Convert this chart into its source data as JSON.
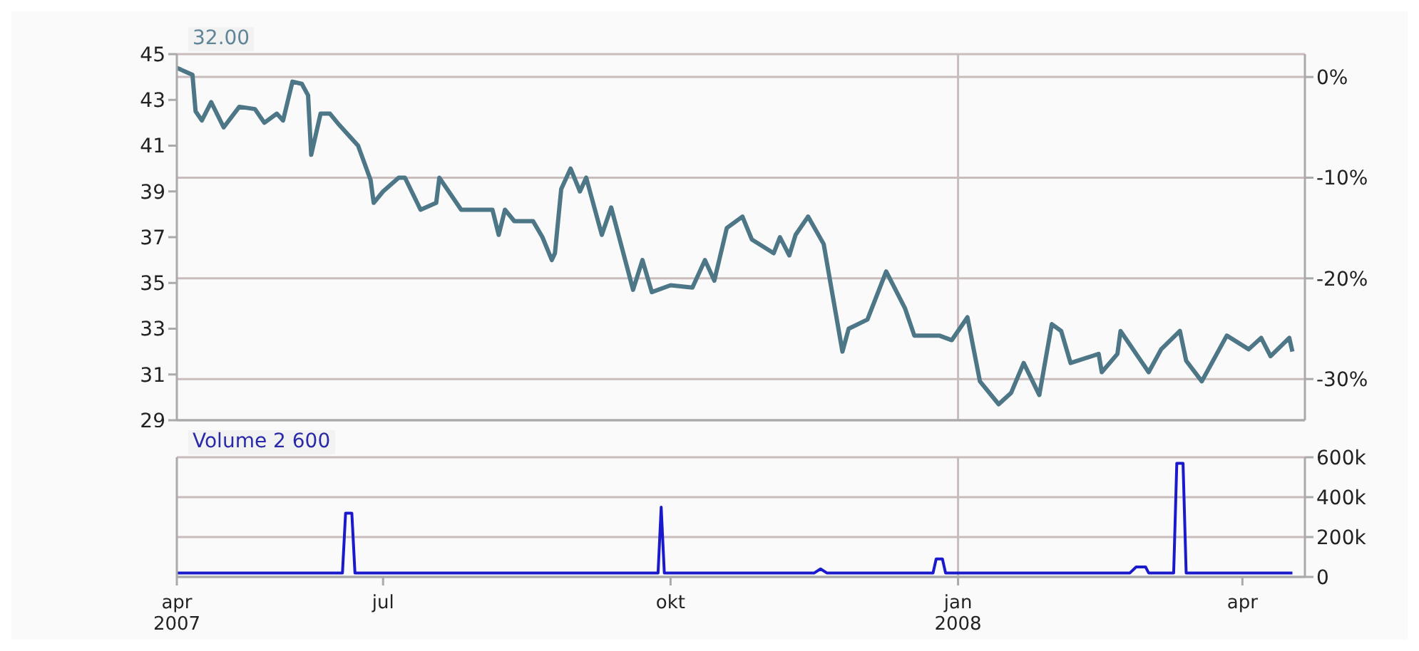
{
  "chart_data": [
    {
      "type": "line",
      "title": "32.00",
      "x": [
        "2007-04-26",
        "2007-05-01",
        "2007-05-02",
        "2007-05-04",
        "2007-05-07",
        "2007-05-11",
        "2007-05-16",
        "2007-05-21",
        "2007-05-24",
        "2007-05-28",
        "2007-05-30",
        "2007-06-02",
        "2007-06-05",
        "2007-06-07",
        "2007-06-08",
        "2007-06-11",
        "2007-06-14",
        "2007-06-17",
        "2007-06-21",
        "2007-06-23",
        "2007-06-27",
        "2007-06-28",
        "2007-07-01",
        "2007-07-06",
        "2007-07-08",
        "2007-07-13",
        "2007-07-18",
        "2007-07-19",
        "2007-07-26",
        "2007-08-05",
        "2007-08-07",
        "2007-08-09",
        "2007-08-12",
        "2007-08-18",
        "2007-08-21",
        "2007-08-24",
        "2007-08-25",
        "2007-08-27",
        "2007-08-30",
        "2007-09-02",
        "2007-09-04",
        "2007-09-09",
        "2007-09-12",
        "2007-09-19",
        "2007-09-22",
        "2007-09-25",
        "2007-10-01",
        "2007-10-08",
        "2007-10-12",
        "2007-10-15",
        "2007-10-19",
        "2007-10-24",
        "2007-10-27",
        "2007-11-03",
        "2007-11-05",
        "2007-11-08",
        "2007-11-10",
        "2007-11-14",
        "2007-11-19",
        "2007-11-25",
        "2007-11-27",
        "2007-12-03",
        "2007-12-09",
        "2007-12-15",
        "2007-12-18",
        "2007-12-26",
        "2007-12-30",
        "2008-01-04",
        "2008-01-08",
        "2008-01-14",
        "2008-01-18",
        "2008-01-22",
        "2008-01-27",
        "2008-01-31",
        "2008-02-03",
        "2008-02-06",
        "2008-02-15",
        "2008-02-16",
        "2008-02-21",
        "2008-02-22",
        "2008-03-02",
        "2008-03-06",
        "2008-03-12",
        "2008-03-14",
        "2008-03-19",
        "2008-03-27",
        "2008-04-03",
        "2008-04-07",
        "2008-04-10",
        "2008-04-16",
        "2008-04-17"
      ],
      "series": [
        {
          "color": "#4d7687",
          "values": [
            44.4,
            44.1,
            42.5,
            42.1,
            42.9,
            41.8,
            42.7,
            42.6,
            42.0,
            42.4,
            42.1,
            43.8,
            43.7,
            43.2,
            40.6,
            42.4,
            42.4,
            41.9,
            41.3,
            41.0,
            39.5,
            38.5,
            39.0,
            39.6,
            39.6,
            38.2,
            38.5,
            39.6,
            38.2,
            38.2,
            37.1,
            38.2,
            37.7,
            37.7,
            37.0,
            36.0,
            36.3,
            39.1,
            40.0,
            39.0,
            39.6,
            37.1,
            38.3,
            34.7,
            36.0,
            34.6,
            34.9,
            34.8,
            36.0,
            35.1,
            37.4,
            37.9,
            36.9,
            36.3,
            37.0,
            36.2,
            37.1,
            37.9,
            36.7,
            32.0,
            33.0,
            33.4,
            35.5,
            33.9,
            32.7,
            32.7,
            32.5,
            33.5,
            30.7,
            29.7,
            30.2,
            31.5,
            30.1,
            33.2,
            32.9,
            31.5,
            31.9,
            31.1,
            31.9,
            32.9,
            31.1,
            32.1,
            32.9,
            31.6,
            30.7,
            32.7,
            32.1,
            32.6,
            31.8,
            32.6,
            32.0
          ]
        }
      ],
      "xlim": [
        "2007-04-26",
        "2008-04-21"
      ],
      "ylim": [
        29,
        45
      ],
      "yticks": [
        29,
        31,
        33,
        35,
        37,
        39,
        41,
        43,
        45
      ],
      "y2lim": [
        -34.09,
        2.27
      ],
      "y2ticks": [
        {
          "value": 0,
          "label": "0%"
        },
        {
          "value": -10,
          "label": "-10%"
        },
        {
          "value": -20,
          "label": "-20%"
        },
        {
          "value": -30,
          "label": "-30%"
        }
      ],
      "ref_lines": [
        {
          "axis": "x",
          "value": "2008-01-01"
        }
      ],
      "grid": "y",
      "tick_labels": "y",
      "marker": "none"
    },
    {
      "type": "line",
      "title": "Volume 2 600",
      "x": [
        "2007-04-26",
        "2007-06-18",
        "2007-06-19",
        "2007-06-21",
        "2007-06-22",
        "2007-09-27",
        "2007-09-28",
        "2007-09-29",
        "2007-11-16",
        "2007-11-18",
        "2007-11-20",
        "2007-12-24",
        "2007-12-25",
        "2007-12-27",
        "2007-12-28",
        "2008-02-25",
        "2008-02-27",
        "2008-03-01",
        "2008-03-02",
        "2008-03-10",
        "2008-03-11",
        "2008-03-13",
        "2008-03-14",
        "2008-04-17"
      ],
      "series": [
        {
          "color": "#1a1acc",
          "values": [
            20000,
            20000,
            320000,
            320000,
            20000,
            20000,
            350000,
            20000,
            20000,
            40000,
            20000,
            20000,
            90000,
            90000,
            20000,
            20000,
            50000,
            50000,
            20000,
            20000,
            570000,
            570000,
            20000,
            20000
          ]
        }
      ],
      "xlim": [
        "2007-04-26",
        "2008-04-21"
      ],
      "xticks": [
        {
          "value": "2007-04-26",
          "label": "apr 2007"
        },
        {
          "value": "2007-07-01",
          "label": "jul"
        },
        {
          "value": "2007-10-01",
          "label": "okt"
        },
        {
          "value": "2008-01-01",
          "label": "jan 2008"
        },
        {
          "value": "2008-04-01",
          "label": "apr"
        }
      ],
      "ylim": [
        0,
        600000
      ],
      "yticks": [
        0,
        {
          "value": 200000,
          "label": "200k"
        },
        {
          "value": 400000,
          "label": "400k"
        },
        {
          "value": 600000,
          "label": "600k"
        }
      ],
      "ref_lines": [
        {
          "axis": "x",
          "value": "2008-01-01"
        }
      ],
      "grid": "y",
      "marker": "none"
    }
  ]
}
